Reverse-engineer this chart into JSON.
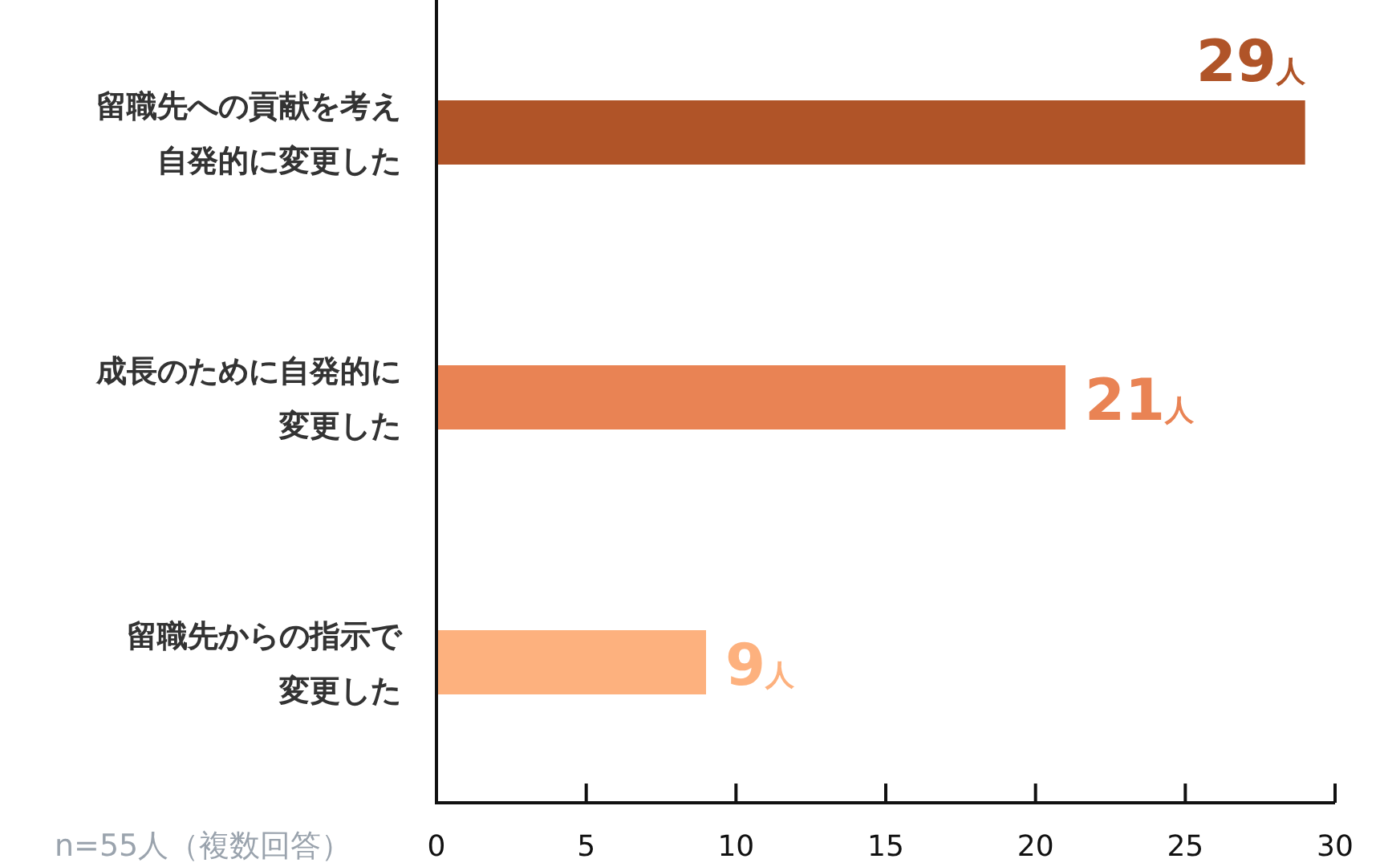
{
  "chart_data": {
    "type": "bar",
    "orientation": "horizontal",
    "categories": [
      "留職先への貢献を考え自発的に変更した",
      "成長のために自発的に変更した",
      "留職先からの指示で変更した"
    ],
    "values": [
      29,
      21,
      9
    ],
    "colors": [
      "#b05428",
      "#e98354",
      "#fdb17e"
    ],
    "value_labels": [
      "29人",
      "21人",
      "9人"
    ],
    "xlim": [
      0,
      30
    ],
    "xticks": [
      0,
      5,
      10,
      15,
      20,
      25,
      30
    ],
    "grid": false,
    "annotations": [
      "n=55人（複数回答）"
    ]
  }
}
